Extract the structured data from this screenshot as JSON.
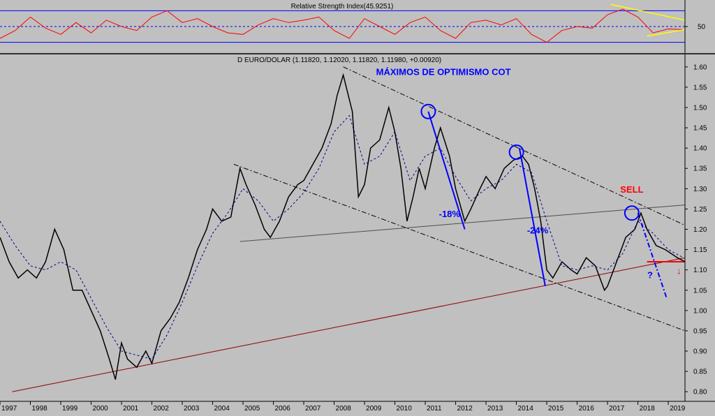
{
  "chart_data": [
    {
      "type": "line",
      "panel": "indicator",
      "title": "Relative Strength Index(45.9251)",
      "ytick_labels": [
        "50"
      ],
      "reference_levels": [
        30,
        50,
        70
      ],
      "ylim": [
        20,
        80
      ],
      "series": [
        {
          "color": "#ff0000",
          "x": [
            1997,
            1997.5,
            1998,
            1998.5,
            1999,
            1999.5,
            2000,
            2000.5,
            2001,
            2001.5,
            2002,
            2002.5,
            2003,
            2003.5,
            2004,
            2004.5,
            2005,
            2005.5,
            2006,
            2006.5,
            2007,
            2007.5,
            2008,
            2008.5,
            2009,
            2009.5,
            2010,
            2010.5,
            2011,
            2011.5,
            2012,
            2012.5,
            2013,
            2013.5,
            2014,
            2014.5,
            2015,
            2015.5,
            2016,
            2016.5,
            2017,
            2017.5,
            2018,
            2018.5,
            2019,
            2019.5
          ],
          "values": [
            35,
            45,
            62,
            48,
            40,
            55,
            42,
            58,
            50,
            45,
            62,
            70,
            55,
            60,
            50,
            42,
            40,
            52,
            60,
            55,
            58,
            62,
            45,
            35,
            60,
            50,
            40,
            55,
            62,
            45,
            35,
            55,
            58,
            52,
            60,
            40,
            30,
            45,
            50,
            48,
            65,
            72,
            62,
            42,
            47,
            46
          ]
        }
      ],
      "trendlines": [
        {
          "color": "#ffff00",
          "x": [
            2017.1,
            2019.55
          ],
          "values": [
            78,
            58
          ]
        },
        {
          "color": "#ffff00",
          "x": [
            2018.3,
            2019.55
          ],
          "values": [
            38,
            46
          ]
        }
      ]
    },
    {
      "type": "line",
      "panel": "price",
      "title": "D EURO/DOLAR (1.11820, 1.12020, 1.11820, 1.11980, +0.00920)",
      "xlabel": "",
      "ylabel": "",
      "xlim": [
        1997,
        2019.55
      ],
      "ylim": [
        0.79,
        1.61
      ],
      "xtick_labels": [
        "1997",
        "1998",
        "1999",
        "2000",
        "2001",
        "2002",
        "2003",
        "2004",
        "2005",
        "2006",
        "2007",
        "2008",
        "2009",
        "2010",
        "2011",
        "2012",
        "2013",
        "2014",
        "2015",
        "2016",
        "2017",
        "2018",
        "2019"
      ],
      "ytick_labels": [
        "0.80",
        "0.85",
        "0.90",
        "0.95",
        "1.00",
        "1.05",
        "1.10",
        "1.15",
        "1.20",
        "1.25",
        "1.30",
        "1.35",
        "1.40",
        "1.45",
        "1.50",
        "1.55",
        "1.60"
      ],
      "grid": false,
      "series": [
        {
          "color": "#000000",
          "x": [
            1997.0,
            1997.3,
            1997.6,
            1997.9,
            1998.2,
            1998.5,
            1998.8,
            1999.1,
            1999.4,
            1999.7,
            2000.0,
            2000.3,
            2000.6,
            2000.8,
            2001.0,
            2001.2,
            2001.5,
            2001.8,
            2002.0,
            2002.3,
            2002.6,
            2002.9,
            2003.2,
            2003.5,
            2003.8,
            2004.0,
            2004.3,
            2004.6,
            2004.9,
            2005.1,
            2005.4,
            2005.7,
            2005.9,
            2006.2,
            2006.5,
            2006.8,
            2007.0,
            2007.3,
            2007.6,
            2007.9,
            2008.1,
            2008.3,
            2008.6,
            2008.8,
            2009.0,
            2009.2,
            2009.5,
            2009.8,
            2010.0,
            2010.2,
            2010.4,
            2010.6,
            2010.8,
            2011.0,
            2011.3,
            2011.5,
            2011.8,
            2012.0,
            2012.3,
            2012.5,
            2012.8,
            2013.0,
            2013.3,
            2013.6,
            2013.9,
            2014.2,
            2014.4,
            2014.6,
            2014.8,
            2015.0,
            2015.2,
            2015.5,
            2015.8,
            2016.0,
            2016.3,
            2016.6,
            2016.9,
            2017.0,
            2017.3,
            2017.6,
            2017.9,
            2018.1,
            2018.3,
            2018.6,
            2018.9,
            2019.1,
            2019.3,
            2019.55
          ],
          "values": [
            1.18,
            1.12,
            1.08,
            1.1,
            1.08,
            1.12,
            1.2,
            1.15,
            1.05,
            1.05,
            1.0,
            0.95,
            0.88,
            0.83,
            0.92,
            0.88,
            0.86,
            0.9,
            0.87,
            0.95,
            0.98,
            1.02,
            1.08,
            1.15,
            1.2,
            1.25,
            1.22,
            1.23,
            1.35,
            1.31,
            1.26,
            1.2,
            1.18,
            1.22,
            1.28,
            1.31,
            1.32,
            1.36,
            1.4,
            1.46,
            1.53,
            1.58,
            1.49,
            1.28,
            1.31,
            1.4,
            1.42,
            1.5,
            1.44,
            1.35,
            1.22,
            1.28,
            1.35,
            1.3,
            1.4,
            1.45,
            1.38,
            1.3,
            1.22,
            1.25,
            1.3,
            1.33,
            1.3,
            1.35,
            1.37,
            1.38,
            1.36,
            1.3,
            1.22,
            1.1,
            1.08,
            1.12,
            1.1,
            1.09,
            1.13,
            1.11,
            1.05,
            1.06,
            1.12,
            1.18,
            1.2,
            1.24,
            1.2,
            1.16,
            1.15,
            1.14,
            1.13,
            1.12
          ]
        },
        {
          "color": "#00008b",
          "style": "dashed",
          "x": [
            1997.0,
            1997.5,
            1998.0,
            1998.5,
            1999.0,
            1999.5,
            2000.0,
            2000.5,
            2001.0,
            2001.5,
            2002.0,
            2002.5,
            2003.0,
            2003.5,
            2004.0,
            2004.5,
            2005.0,
            2005.5,
            2006.0,
            2006.5,
            2007.0,
            2007.5,
            2008.0,
            2008.5,
            2009.0,
            2009.5,
            2010.0,
            2010.5,
            2011.0,
            2011.5,
            2012.0,
            2012.5,
            2013.0,
            2013.5,
            2014.0,
            2014.5,
            2015.0,
            2015.5,
            2016.0,
            2016.5,
            2017.0,
            2017.5,
            2018.0,
            2018.5,
            2019.0,
            2019.5
          ],
          "values": [
            1.22,
            1.16,
            1.11,
            1.1,
            1.12,
            1.1,
            1.03,
            0.96,
            0.9,
            0.89,
            0.88,
            0.94,
            1.02,
            1.11,
            1.19,
            1.24,
            1.3,
            1.27,
            1.22,
            1.25,
            1.29,
            1.35,
            1.44,
            1.48,
            1.36,
            1.38,
            1.44,
            1.32,
            1.38,
            1.4,
            1.33,
            1.27,
            1.3,
            1.32,
            1.36,
            1.34,
            1.22,
            1.11,
            1.1,
            1.11,
            1.1,
            1.14,
            1.22,
            1.19,
            1.15,
            1.13
          ]
        }
      ],
      "trendlines": [
        {
          "color": "#8b0000",
          "style": "solid",
          "x": [
            1997.4,
            2019.55
          ],
          "values": [
            0.8,
            1.13
          ]
        },
        {
          "color": "#4d4d4d",
          "style": "solid",
          "x": [
            2004.9,
            2019.55
          ],
          "values": [
            1.17,
            1.26
          ]
        },
        {
          "color": "#000000",
          "style": "dashdot",
          "x": [
            2004.7,
            2019.55
          ],
          "values": [
            1.36,
            0.95
          ]
        },
        {
          "color": "#000000",
          "style": "dashdot",
          "x": [
            2008.3,
            2019.55
          ],
          "values": [
            1.6,
            1.21
          ]
        },
        {
          "color": "#0000ff",
          "style": "solid",
          "x": [
            2011.1,
            2012.3
          ],
          "values": [
            1.49,
            1.2
          ]
        },
        {
          "color": "#0000ff",
          "style": "solid",
          "x": [
            2014.1,
            2014.95
          ],
          "values": [
            1.4,
            1.06
          ]
        },
        {
          "color": "#0000ff",
          "style": "dashdot",
          "x": [
            2018.0,
            2018.95
          ],
          "values": [
            1.24,
            1.03
          ]
        },
        {
          "color": "#ff0000",
          "style": "solid",
          "x": [
            2018.3,
            2019.55
          ],
          "values": [
            1.12,
            1.12
          ]
        }
      ],
      "markers": [
        {
          "shape": "circle",
          "color": "#0000ff",
          "x": 2011.1,
          "y": 1.49
        },
        {
          "shape": "circle",
          "color": "#0000ff",
          "x": 2014.0,
          "y": 1.39
        },
        {
          "shape": "circle",
          "color": "#0000ff",
          "x": 2017.8,
          "y": 1.24
        }
      ],
      "annotations": [
        {
          "text": "MÁXIMOS DE OPTIMISMO COT",
          "color": "#0000ff",
          "x": 2011.6,
          "y": 1.58
        },
        {
          "text": "-18%",
          "color": "#0000ff",
          "x": 2011.8,
          "y": 1.23
        },
        {
          "text": "-24%",
          "color": "#0000ff",
          "x": 2014.7,
          "y": 1.19
        },
        {
          "text": "SELL",
          "color": "#ff0000",
          "x": 2017.8,
          "y": 1.29
        },
        {
          "text": "?",
          "color": "#0000ff",
          "x": 2018.4,
          "y": 1.08
        },
        {
          "text": "↓",
          "color": "#ff0000",
          "x": 2019.35,
          "y": 1.09
        }
      ]
    }
  ]
}
